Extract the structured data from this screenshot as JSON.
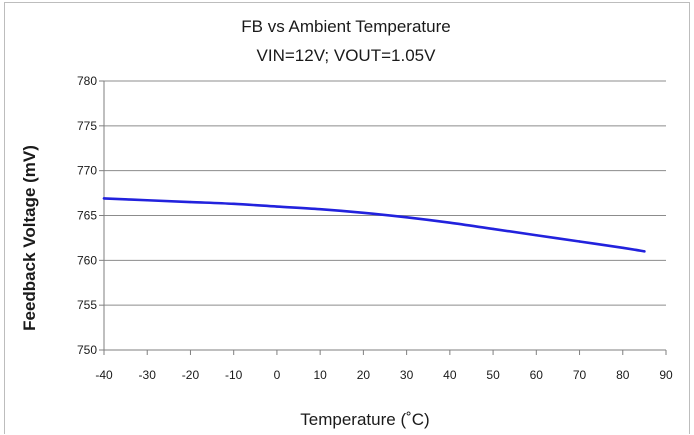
{
  "chart_data": {
    "type": "line",
    "title": "FB vs Ambient Temperature",
    "subtitle": "VIN=12V; VOUT=1.05V",
    "xlabel": "Temperature (˚C)",
    "ylabel": "Feedback Voltage (mV)",
    "xlim": [
      -40,
      90
    ],
    "ylim": [
      750,
      780
    ],
    "x_ticks": [
      "-40",
      "-30",
      "-20",
      "-10",
      "0",
      "10",
      "20",
      "30",
      "40",
      "50",
      "60",
      "70",
      "80",
      "90"
    ],
    "y_ticks": [
      "780",
      "775",
      "770",
      "765",
      "760",
      "755",
      "750"
    ],
    "grid": "horizontal",
    "legend": "none",
    "series": [
      {
        "color": "#2222dd",
        "x": [
          -40,
          -30,
          -20,
          -10,
          0,
          10,
          20,
          30,
          40,
          50,
          60,
          70,
          80,
          85
        ],
        "y": [
          766.9,
          766.7,
          766.5,
          766.3,
          766.0,
          765.7,
          765.3,
          764.8,
          764.2,
          763.5,
          762.8,
          762.1,
          761.4,
          761.0
        ]
      }
    ]
  }
}
